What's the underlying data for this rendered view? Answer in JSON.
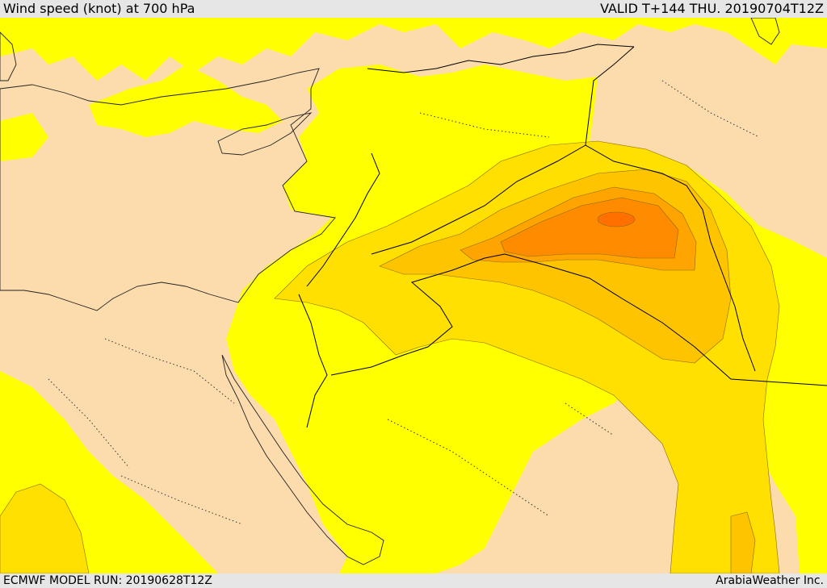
{
  "header": {
    "title": "Wind speed (knot) at 700 hPa",
    "valid": "VALID T+144 THU. 20190704T12Z"
  },
  "footer": {
    "model_run": "ECMWF MODEL RUN: 20190628T12Z",
    "credit": "ArabiaWeather Inc."
  },
  "map": {
    "colors": {
      "sea": "#ffffff",
      "band_lowest": "#fcdcac",
      "band_2": "#ffff00",
      "band_3": "#ffe000",
      "band_4": "#ffc400",
      "band_5": "#ffa400",
      "band_6": "#ff8c00",
      "band_max": "#ff7000",
      "coastline": "#222222",
      "border": "#000000"
    }
  }
}
